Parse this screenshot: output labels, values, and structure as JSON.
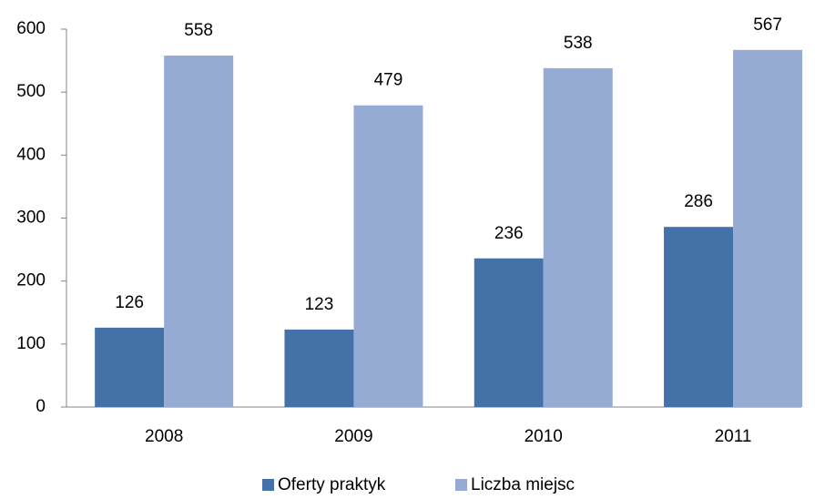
{
  "chart_data": {
    "type": "bar",
    "categories": [
      "2008",
      "2009",
      "2010",
      "2011"
    ],
    "series": [
      {
        "name": "Oferty praktyk",
        "color": "#4472a8",
        "values": [
          126,
          123,
          236,
          286
        ]
      },
      {
        "name": "Liczba miejsc",
        "color": "#95abd3",
        "values": [
          558,
          479,
          538,
          567
        ]
      }
    ],
    "ylim": [
      0,
      600
    ],
    "yticks": [
      0,
      100,
      200,
      300,
      400,
      500,
      600
    ],
    "legend": "bottom"
  }
}
